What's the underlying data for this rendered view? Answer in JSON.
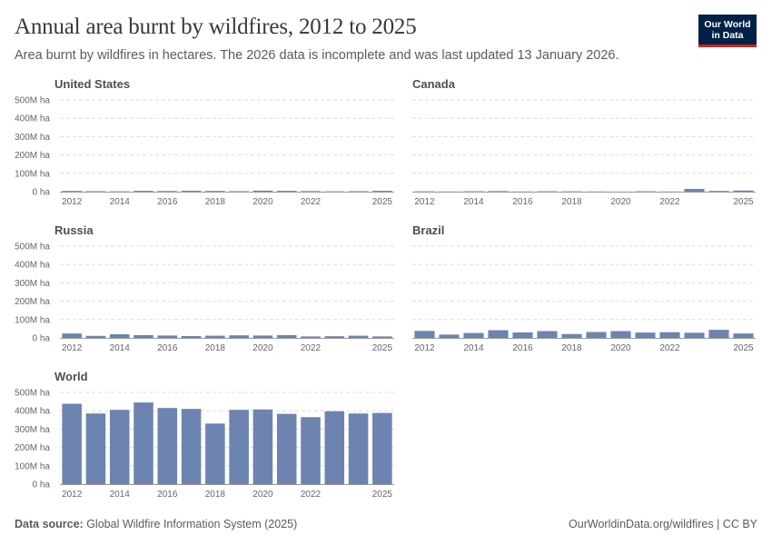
{
  "header": {
    "title": "Annual area burnt by wildfires, 2012 to 2025",
    "subtitle": "Area burnt by wildfires in hectares. The 2026 data is incomplete and was last updated 13 January 2026."
  },
  "logo": {
    "line1": "Our World",
    "line2": "in Data"
  },
  "footer": {
    "source_label": "Data source:",
    "source_text": " Global Wildfire Information System (2025)",
    "right_text": "OurWorldinData.org/wildfires | CC BY"
  },
  "colors": {
    "bar": "#6d83b0",
    "grid": "#dddddd",
    "axis": "#999999"
  },
  "chart_data": [
    {
      "type": "bar",
      "title": "United States",
      "x": [
        2012,
        2013,
        2014,
        2015,
        2016,
        2017,
        2018,
        2019,
        2020,
        2021,
        2022,
        2023,
        2024,
        2025
      ],
      "values": [
        4.0,
        2.5,
        1.5,
        4.5,
        3.5,
        5.0,
        4.0,
        2.5,
        5.5,
        4.5,
        3.0,
        1.5,
        2.5,
        4.5
      ],
      "ylim": [
        0,
        500
      ],
      "yticks": [
        0,
        100,
        200,
        300,
        400,
        500
      ],
      "ytick_labels": [
        "0 ha",
        "100M ha",
        "200M ha",
        "300M ha",
        "400M ha",
        "500M ha"
      ],
      "xtick_labels": [
        "2012",
        "2014",
        "2016",
        "2018",
        "2020",
        "2022",
        "2025"
      ],
      "show_yticks": true
    },
    {
      "type": "bar",
      "title": "Canada",
      "x": [
        2012,
        2013,
        2014,
        2015,
        2016,
        2017,
        2018,
        2019,
        2020,
        2021,
        2022,
        2023,
        2024,
        2025
      ],
      "values": [
        1.5,
        1.0,
        2.0,
        3.0,
        1.0,
        2.0,
        1.5,
        1.0,
        0.5,
        2.0,
        1.0,
        15.0,
        4.0,
        6.0
      ],
      "ylim": [
        0,
        500
      ],
      "yticks": [
        0,
        100,
        200,
        300,
        400,
        500
      ],
      "ytick_labels": [
        "0 ha",
        "100M ha",
        "200M ha",
        "300M ha",
        "400M ha",
        "500M ha"
      ],
      "xtick_labels": [
        "2012",
        "2014",
        "2016",
        "2018",
        "2020",
        "2022",
        "2025"
      ],
      "show_yticks": false
    },
    {
      "type": "bar",
      "title": "Russia",
      "x": [
        2012,
        2013,
        2014,
        2015,
        2016,
        2017,
        2018,
        2019,
        2020,
        2021,
        2022,
        2023,
        2024,
        2025
      ],
      "values": [
        24,
        11,
        20,
        15,
        13,
        10,
        12,
        14,
        13,
        15,
        8,
        9,
        12,
        8
      ],
      "ylim": [
        0,
        500
      ],
      "yticks": [
        0,
        100,
        200,
        300,
        400,
        500
      ],
      "ytick_labels": [
        "0 ha",
        "100M ha",
        "200M ha",
        "300M ha",
        "400M ha",
        "500M ha"
      ],
      "xtick_labels": [
        "2012",
        "2014",
        "2016",
        "2018",
        "2020",
        "2022",
        "2025"
      ],
      "show_yticks": true
    },
    {
      "type": "bar",
      "title": "Brazil",
      "x": [
        2012,
        2013,
        2014,
        2015,
        2016,
        2017,
        2018,
        2019,
        2020,
        2021,
        2022,
        2023,
        2024,
        2025
      ],
      "values": [
        38,
        18,
        27,
        42,
        30,
        37,
        21,
        32,
        37,
        29,
        31,
        28,
        44,
        24
      ],
      "ylim": [
        0,
        500
      ],
      "yticks": [
        0,
        100,
        200,
        300,
        400,
        500
      ],
      "ytick_labels": [
        "0 ha",
        "100M ha",
        "200M ha",
        "300M ha",
        "400M ha",
        "500M ha"
      ],
      "xtick_labels": [
        "2012",
        "2014",
        "2016",
        "2018",
        "2020",
        "2022",
        "2025"
      ],
      "show_yticks": false
    },
    {
      "type": "bar",
      "title": "World",
      "x": [
        2012,
        2013,
        2014,
        2015,
        2016,
        2017,
        2018,
        2019,
        2020,
        2021,
        2022,
        2023,
        2024,
        2025
      ],
      "values": [
        438,
        385,
        405,
        445,
        415,
        410,
        330,
        405,
        407,
        383,
        365,
        397,
        385,
        388
      ],
      "ylim": [
        0,
        500
      ],
      "yticks": [
        0,
        100,
        200,
        300,
        400,
        500
      ],
      "ytick_labels": [
        "0 ha",
        "100M ha",
        "200M ha",
        "300M ha",
        "400M ha",
        "500M ha"
      ],
      "xtick_labels": [
        "2012",
        "2014",
        "2016",
        "2018",
        "2020",
        "2022",
        "2025"
      ],
      "show_yticks": true
    }
  ]
}
